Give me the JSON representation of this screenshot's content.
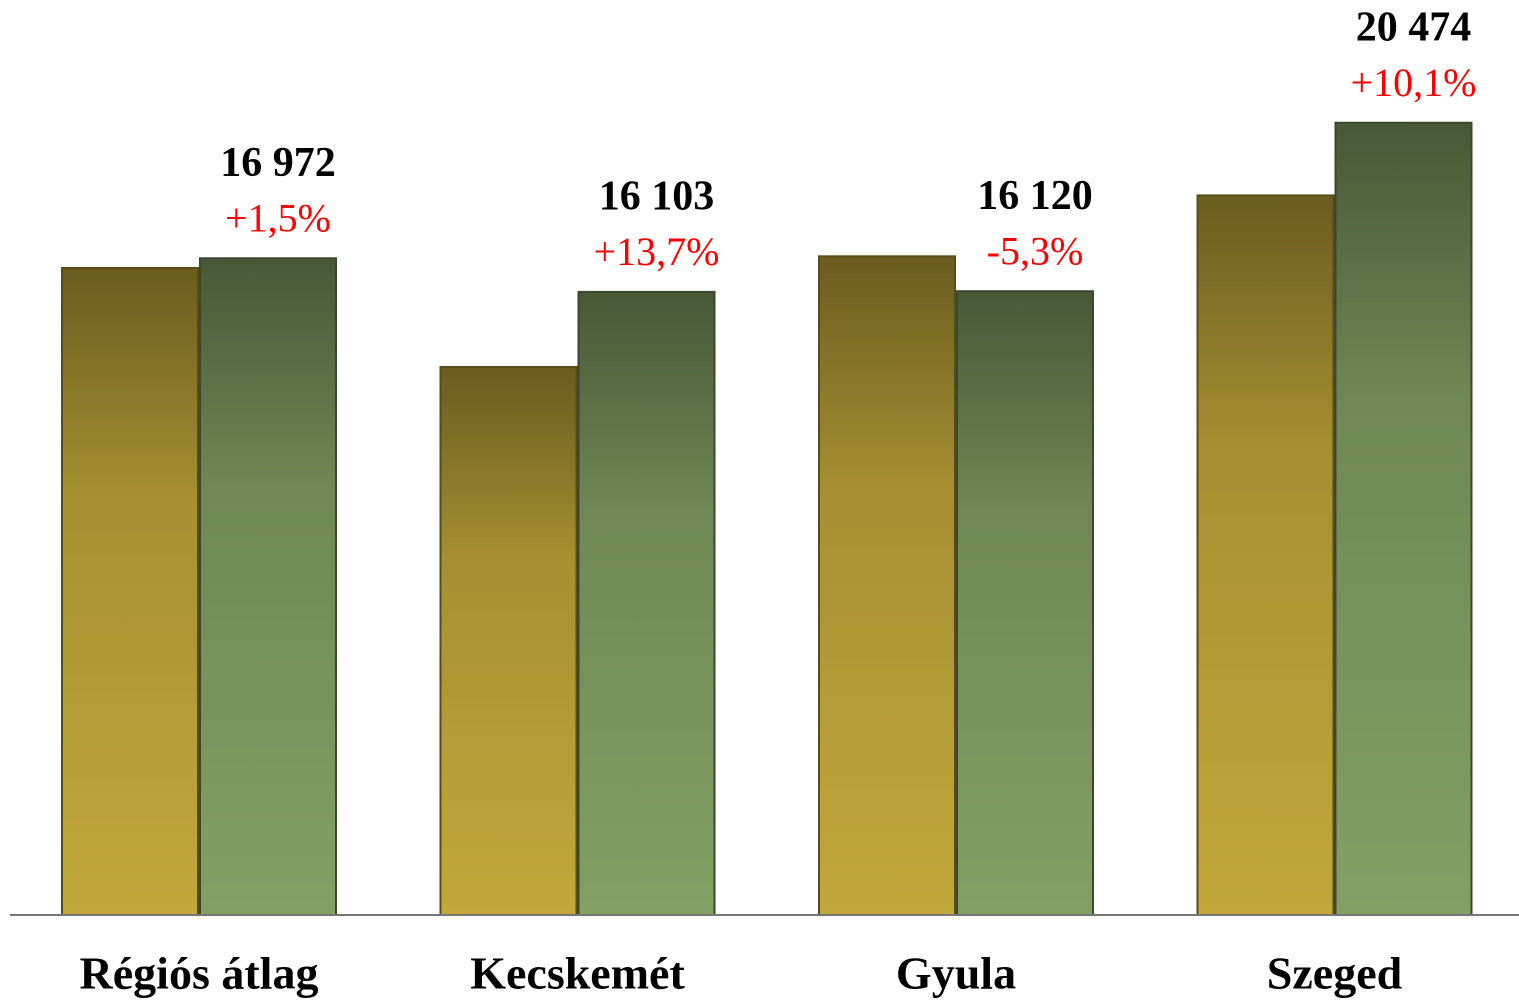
{
  "chart_data": {
    "type": "bar",
    "categories": [
      "Régiós átlag",
      "Kecskemét",
      "Gyula",
      "Szeged"
    ],
    "series": [
      {
        "color": "#c2a83a",
        "values": [
          16721,
          14163,
          17022,
          18596
        ]
      },
      {
        "color": "#82a064",
        "values": [
          16972,
          16103,
          16120,
          20474
        ],
        "value_labels": [
          "16 972",
          "16 103",
          "16 120",
          "20 474"
        ],
        "changes": [
          1.5,
          13.7,
          -5.3,
          10.1
        ],
        "change_labels": [
          "+1,5%",
          "+13,7%",
          "-5,3%",
          "+10,1%"
        ],
        "change_color": "#ff0000"
      }
    ],
    "ylim": [
      0,
      23000
    ]
  }
}
